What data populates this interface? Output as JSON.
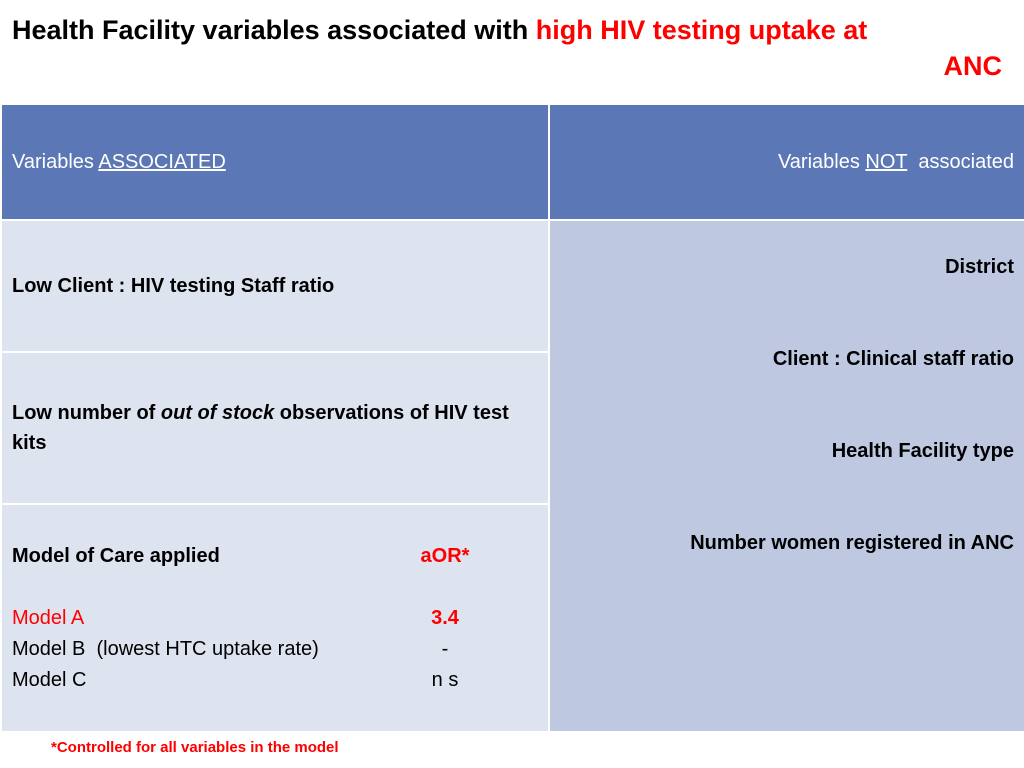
{
  "title": {
    "part1": "Health Facility variables associated with ",
    "highlight_line1": "high HIV testing uptake at",
    "highlight_line2": "ANC"
  },
  "header": {
    "left_prefix": "Variables ",
    "left_emph": "ASSOCIATED",
    "right_prefix": "Variables ",
    "right_emph": "NOT",
    "right_suffix": "  associated"
  },
  "associated": {
    "row1": "Low Client : HIV testing Staff ratio",
    "row2_prefix": "Low number of ",
    "row2_italic": "out of stock",
    "row2_suffix": " observations of HIV test kits",
    "model": {
      "heading": "Model of Care applied",
      "aor_label": "aOR*",
      "items": [
        {
          "name": "Model A",
          "value": "3.4"
        },
        {
          "name": "Model B  (lowest HTC uptake rate)",
          "value": "-"
        },
        {
          "name": "Model C",
          "value": "n s"
        }
      ]
    }
  },
  "not_associated": [
    "District",
    "Client : Clinical staff ratio",
    "Health Facility type",
    "Number women registered in ANC"
  ],
  "footnote": "*Controlled for all variables in the model",
  "colors": {
    "header_bg": "#5b77b5",
    "left_cell_bg": "#dde3ef",
    "right_cell_bg": "#bec8e1",
    "accent_red": "#ff0000"
  }
}
